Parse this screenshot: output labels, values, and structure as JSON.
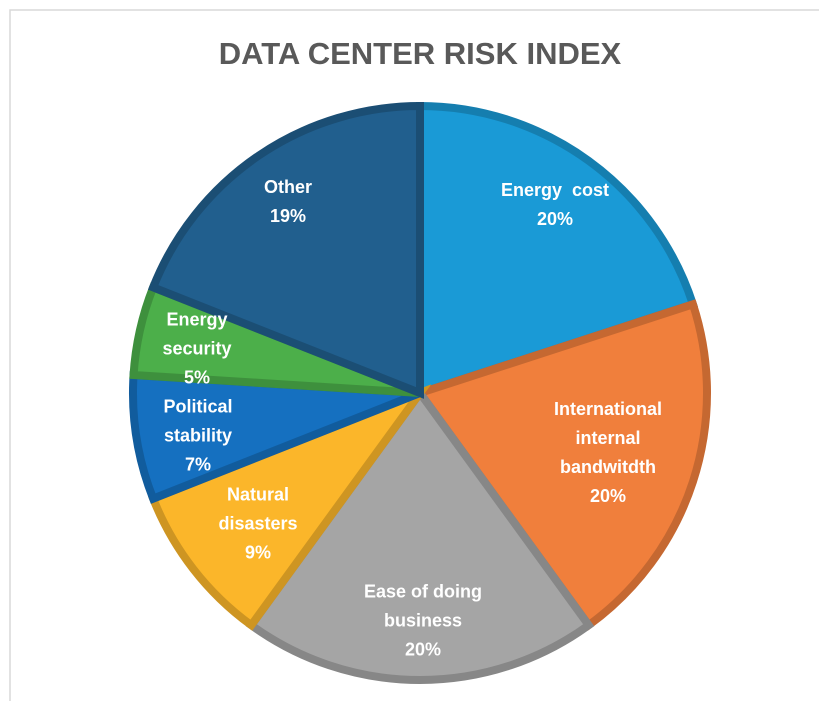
{
  "chart_data": {
    "type": "pie",
    "title": "DATA CENTER RISK INDEX",
    "categories": [
      "Energy  cost",
      "International internal bandwitdth",
      "Ease of doing business",
      "Natural disasters",
      "Political stability",
      "Energy security",
      "Other"
    ],
    "values": [
      20,
      20,
      20,
      9,
      7,
      5,
      19
    ],
    "value_labels": [
      "20%",
      "20%",
      "20%",
      "9%",
      "7%",
      "5%",
      "19%"
    ],
    "colors": [
      "#1a9ad6",
      "#f07f3c",
      "#a5a5a5",
      "#fbb62a",
      "#1570c0",
      "#4caf4a",
      "#215f8e"
    ]
  }
}
